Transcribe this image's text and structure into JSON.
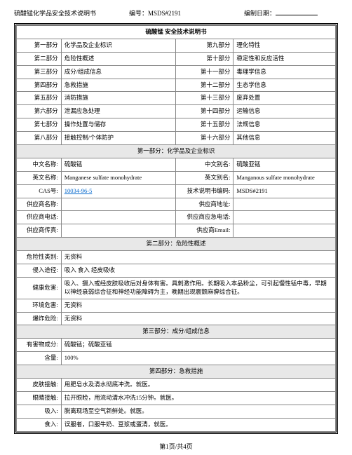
{
  "header": {
    "doc_name": "硫酸锰化学品安全技术说明书",
    "code_label": "编号：",
    "code_value": "MSDS#2191",
    "date_label": "编制日期：",
    "date_value": ""
  },
  "title": "硫酸锰 安全技术说明书",
  "toc": [
    {
      "l1": "第一部分",
      "v1": "化学品及企业标识",
      "l2": "第九部分",
      "v2": "理化特性"
    },
    {
      "l1": "第二部分",
      "v1": "危险性概述",
      "l2": "第十部分",
      "v2": "稳定性和反应活性"
    },
    {
      "l1": "第三部分",
      "v1": "成分/组成信息",
      "l2": "第十一部分",
      "v2": "毒理学信息"
    },
    {
      "l1": "第四部分",
      "v1": "急救措施",
      "l2": "第十二部分",
      "v2": "生态学信息"
    },
    {
      "l1": "第五部分",
      "v1": "消防措施",
      "l2": "第十三部分",
      "v2": "废弃处置"
    },
    {
      "l1": "第六部分",
      "v1": "泄漏应急处理",
      "l2": "第十四部分",
      "v2": "运输信息"
    },
    {
      "l1": "第七部分",
      "v1": "操作处置与储存",
      "l2": "第十五部分",
      "v2": "法规信息"
    },
    {
      "l1": "第八部分",
      "v1": "接触控制/个体防护",
      "l2": "第十六部分",
      "v2": "其他信息"
    }
  ],
  "section1": {
    "header": "第一部分：化学品及企业标识",
    "rows": [
      {
        "l1": "中文名称:",
        "v1": "硫酸锰",
        "l2": "中文别名:",
        "v2": "硫酸亚锰"
      },
      {
        "l1": "英文名称:",
        "v1": "Manganese sulfate monohydrate",
        "l2": "英文别名:",
        "v2": "Manganous sulfate monohydrate"
      },
      {
        "l1": "CAS号:",
        "v1": "10034-96-5",
        "v1_link": true,
        "l2": "技术说明书编码:",
        "v2": "MSDS#2191"
      },
      {
        "l1": "供应商名称:",
        "v1": "",
        "l2": "供应商地址:",
        "v2": ""
      },
      {
        "l1": "供应商电话:",
        "v1": "",
        "l2": "供应商应急电话:",
        "v2": ""
      },
      {
        "l1": "供应商传真:",
        "v1": "",
        "l2": "供应商Email:",
        "v2": ""
      }
    ]
  },
  "section2": {
    "header": "第二部分：危险性概述",
    "rows": [
      {
        "l": "危险性类别:",
        "v": "无资料"
      },
      {
        "l": "侵入途径:",
        "v": "吸入 食入 经皮吸收"
      },
      {
        "l": "健康危害:",
        "v": "吸入、摄入或经皮肤吸收后对身体有害。具刺激作用。长期吸入本品粉尘，可引起慢性锰中毒，早期以神经衰弱综合征和神经功能障碍为主，晚期出现震颤麻痹综合征。"
      },
      {
        "l": "环境危害:",
        "v": "无资料"
      },
      {
        "l": "爆炸危险:",
        "v": "无资料"
      }
    ]
  },
  "section3": {
    "header": "第三部分：成分/组成信息",
    "rows": [
      {
        "l": "有害物成分:",
        "v": "硫酸锰；硫酸亚锰"
      },
      {
        "l": "含量:",
        "v": "100%"
      }
    ]
  },
  "section4": {
    "header": "第四部分：急救措施",
    "rows": [
      {
        "l": "皮肤接触:",
        "v": "用肥皂水及清水彻底冲洗。就医。"
      },
      {
        "l": "眼睛接触:",
        "v": "拉开眼睑，用流动清水冲洗15分钟。就医。"
      },
      {
        "l": "吸入:",
        "v": "脱离现场至空气新鲜处。就医。"
      },
      {
        "l": "食入:",
        "v": "误服者，口服牛奶、豆浆或蛋清，就医。"
      }
    ]
  },
  "footer": "第1页/共4页",
  "colors": {
    "section_bg": "#e8e8e8",
    "border": "#888888",
    "link": "#0066cc",
    "page_bg": "#ffffff"
  }
}
